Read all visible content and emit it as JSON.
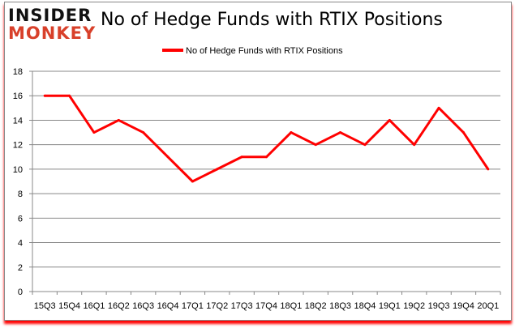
{
  "logo": {
    "line1": "INSIDER",
    "line2": "MONKEY"
  },
  "chart_data": {
    "type": "line",
    "title": "No of Hedge Funds with RTIX Positions",
    "xlabel": "",
    "ylabel": "",
    "categories": [
      "15Q3",
      "15Q4",
      "16Q1",
      "16Q2",
      "16Q3",
      "16Q4",
      "17Q1",
      "17Q2",
      "17Q3",
      "17Q4",
      "18Q1",
      "18Q2",
      "18Q3",
      "18Q4",
      "19Q1",
      "19Q2",
      "19Q3",
      "19Q4",
      "20Q1"
    ],
    "series": [
      {
        "name": "No of Hedge Funds with RTIX Positions",
        "color": "#ff0000",
        "values": [
          16,
          16,
          13,
          14,
          13,
          11,
          9,
          10,
          11,
          11,
          13,
          12,
          13,
          12,
          14,
          12,
          15,
          13,
          10
        ]
      }
    ],
    "ylim": [
      0,
      18
    ],
    "yticks": [
      0,
      2,
      4,
      6,
      8,
      10,
      12,
      14,
      16,
      18
    ],
    "grid": true,
    "legend": "top"
  }
}
